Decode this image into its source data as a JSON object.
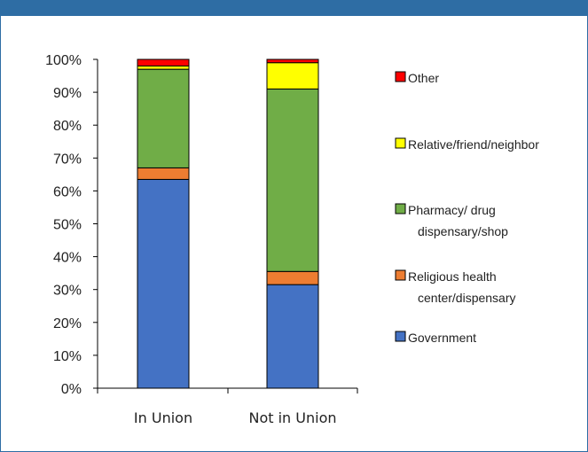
{
  "chart_data": {
    "type": "bar",
    "stacked": true,
    "categories": [
      "In Union",
      "Not in Union"
    ],
    "series": [
      {
        "name": "Government",
        "color": "#4472c4",
        "values": [
          63.5,
          31.5
        ]
      },
      {
        "name": "Religious health center/dispensary",
        "color": "#ed7d31",
        "values": [
          3.5,
          4
        ]
      },
      {
        "name": "Pharmacy/ drug dispensary/shop",
        "color": "#70ad47",
        "values": [
          30,
          55.5
        ]
      },
      {
        "name": "Relative/friend/neighbor",
        "color": "#ffff00",
        "values": [
          1,
          8
        ]
      },
      {
        "name": "Other",
        "color": "#ff0000",
        "values": [
          2,
          1
        ]
      }
    ],
    "legend_lines": [
      [
        "Other"
      ],
      [
        "Relative/friend/neighbor"
      ],
      [
        "Pharmacy/ drug",
        "dispensary/shop"
      ],
      [
        "Religious health",
        "center/dispensary"
      ],
      [
        "Government"
      ]
    ],
    "y_ticks": [
      "0%",
      "10%",
      "20%",
      "30%",
      "40%",
      "50%",
      "60%",
      "70%",
      "80%",
      "90%",
      "100%"
    ],
    "ylim": [
      0,
      100
    ],
    "legend_position": "right",
    "grid": false,
    "title": "",
    "xlabel": "",
    "ylabel": ""
  },
  "colors": {
    "header": "#2e6da4",
    "frame": "#2e6da4"
  }
}
